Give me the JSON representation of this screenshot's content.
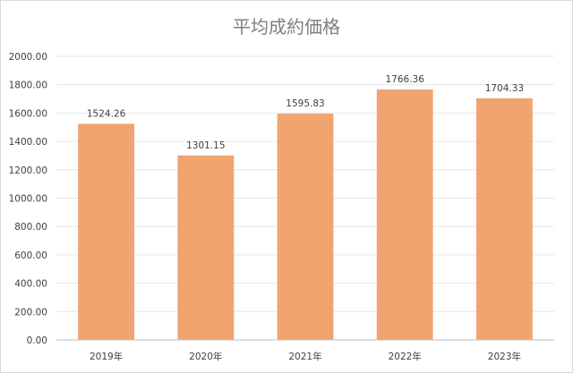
{
  "chart_data": {
    "type": "bar",
    "title": "平均成約価格",
    "categories": [
      "2019年",
      "2020年",
      "2021年",
      "2022年",
      "2023年"
    ],
    "values": [
      1524.26,
      1301.15,
      1595.83,
      1766.36,
      1704.33
    ],
    "value_labels": [
      "1524.26",
      "1301.15",
      "1595.83",
      "1766.36",
      "1704.33"
    ],
    "y_ticks": [
      "0.00",
      "200.00",
      "400.00",
      "600.00",
      "800.00",
      "1000.00",
      "1200.00",
      "1400.00",
      "1600.00",
      "1800.00",
      "2000.00"
    ],
    "y_tick_values": [
      0,
      200,
      400,
      600,
      800,
      1000,
      1200,
      1400,
      1600,
      1800,
      2000
    ],
    "ylim": [
      0,
      2000
    ],
    "xlabel": "",
    "ylabel": "",
    "grid": true,
    "legend": "none",
    "bar_color": "#f0a470"
  }
}
